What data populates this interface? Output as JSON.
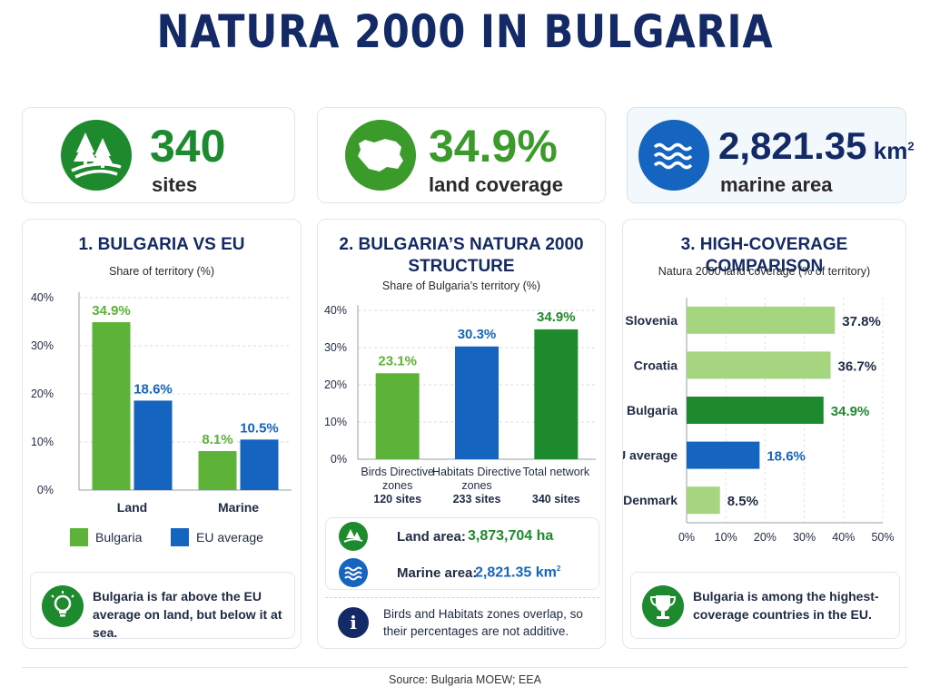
{
  "title": "NATURA 2000 IN BULGARIA",
  "stats": [
    {
      "value": "340",
      "label": "sites",
      "icon": "forest-icon",
      "color": "#1e8a2e"
    },
    {
      "value": "34.9%",
      "label": "land coverage",
      "icon": "bulgaria-map-icon",
      "color": "#3a9a2a"
    },
    {
      "value": "2,821.35",
      "unit": "km",
      "unit_sup": "2",
      "label": "marine area",
      "icon": "waves-icon",
      "color": "#1565c0"
    }
  ],
  "panel1": {
    "title": "1. BULGARIA VS EU",
    "subtitle": "Share of territory (%)",
    "note": "Bulgaria is far above the EU average on land, but below it at sea.",
    "note_icon": "lightbulb-icon"
  },
  "panel2": {
    "title_line1": "2. BULGARIA’S NATURA 2000",
    "title_line2": "STRUCTURE",
    "subtitle": "Share of Bulgaria’s territory (%)",
    "land_area_label": "Land area:",
    "land_area_value": "3,873,704 ha",
    "marine_area_label": "Marine area:",
    "marine_area_value": "2,821.35 km",
    "marine_area_sup": "2",
    "note": "Birds and Habitats zones overlap, so their percentages are not additive.",
    "note_icon": "info-icon"
  },
  "panel3": {
    "title": "3. HIGH-COVERAGE COMPARISON",
    "subtitle": "Natura 2000 land coverage (% of territory)",
    "note": "Bulgaria is among the highest-coverage countries in the EU.",
    "note_icon": "trophy-icon"
  },
  "source": "Source: Bulgaria MOEW; EEA",
  "colors": {
    "green": "#5cb338",
    "dark_green": "#1e8a2e",
    "light_green": "#a5d57f",
    "blue": "#1565c0",
    "navy": "#142a66"
  },
  "chart_data": [
    {
      "type": "bar",
      "categories": [
        "Land",
        "Marine"
      ],
      "series": [
        {
          "name": "Bulgaria",
          "values": [
            34.9,
            8.1
          ],
          "labels": [
            "34.9%",
            "8.1%"
          ],
          "color": "#5cb338"
        },
        {
          "name": "EU average",
          "values": [
            18.6,
            10.5
          ],
          "labels": [
            "18.6%",
            "10.5%"
          ],
          "color": "#1565c0"
        }
      ],
      "yticks": [
        "0%",
        "10%",
        "20%",
        "30%",
        "40%"
      ],
      "ylim": [
        0,
        40
      ],
      "legend": "bottom"
    },
    {
      "type": "bar",
      "categories": [
        "Birds Directive zones",
        "Habitats Directive zones",
        "Total network"
      ],
      "category_lines": [
        [
          "Birds Directive",
          "zones"
        ],
        [
          "Habitats Directive",
          "zones"
        ],
        [
          "Total network"
        ]
      ],
      "values": [
        23.1,
        30.3,
        34.9
      ],
      "labels": [
        "23.1%",
        "30.3%",
        "34.9%"
      ],
      "site_counts": [
        "120 sites",
        "233 sites",
        "340 sites"
      ],
      "colors": [
        "#5cb338",
        "#1565c0",
        "#1e8a2e"
      ],
      "yticks": [
        "0%",
        "10%",
        "20%",
        "30%",
        "40%"
      ],
      "ylim": [
        0,
        40
      ]
    },
    {
      "type": "bar",
      "orientation": "horizontal",
      "categories": [
        "Slovenia",
        "Croatia",
        "Bulgaria",
        "EU average",
        "Denmark"
      ],
      "values": [
        37.8,
        36.7,
        34.9,
        18.6,
        8.5
      ],
      "labels": [
        "37.8%",
        "36.7%",
        "34.9%",
        "18.6%",
        "8.5%"
      ],
      "colors": [
        "#a5d57f",
        "#a5d57f",
        "#1e8a2e",
        "#1565c0",
        "#a5d57f"
      ],
      "xticks": [
        "0%",
        "10%",
        "20%",
        "30%",
        "40%",
        "50%"
      ],
      "xlim": [
        0,
        50
      ]
    }
  ]
}
